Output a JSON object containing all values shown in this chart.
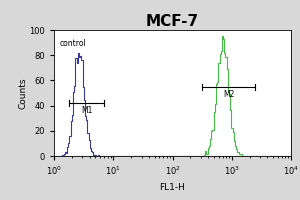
{
  "title": "MCF-7",
  "xlabel": "FL1-H",
  "ylabel": "Counts",
  "xlim": [
    1.0,
    10000.0
  ],
  "ylim": [
    0,
    100
  ],
  "yticks": [
    0,
    20,
    40,
    60,
    80,
    100
  ],
  "control_label": "control",
  "marker1_label": "M1",
  "marker2_label": "M2",
  "control_color": "#3a3a99",
  "sample_color": "#44bb44",
  "plot_bg_color": "#ffffff",
  "fig_bg_color": "#d8d8d8",
  "title_fontsize": 11,
  "axis_fontsize": 6,
  "label_fontsize": 6.5,
  "control_peak_x_log": 0.42,
  "control_peak_y": 82,
  "control_sigma": 0.2,
  "sample_peak_x_log": 2.85,
  "sample_peak_y": 95,
  "sample_sigma": 0.1,
  "m1_x1": 1.8,
  "m1_x2": 7.0,
  "m1_y": 42,
  "m2_x1": 320,
  "m2_x2": 2500,
  "m2_y": 55
}
